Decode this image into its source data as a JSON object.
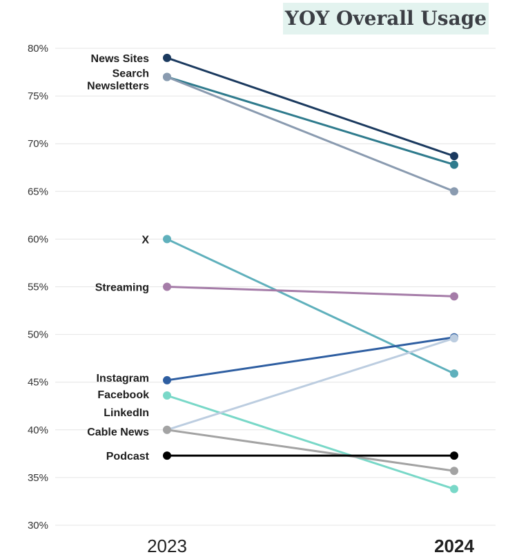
{
  "title": "YOY Overall Usage",
  "chart_data": {
    "type": "line",
    "title": "YOY Overall Usage",
    "x": [
      "2023",
      "2024"
    ],
    "x_emphasis": "2024",
    "ylim": [
      30,
      80
    ],
    "yticks": [
      "30%",
      "35%",
      "40%",
      "45%",
      "50%",
      "55%",
      "60%",
      "65%",
      "70%",
      "75%",
      "80%"
    ],
    "grid": true,
    "legend": "none (series labels at 2023 points)",
    "series": [
      {
        "name": "News Sites",
        "values": [
          79,
          68.7
        ],
        "color": "#1b3a5f"
      },
      {
        "name": "Search",
        "values": [
          77,
          67.8
        ],
        "color": "#2f7b8d"
      },
      {
        "name": "Newsletters",
        "values": [
          77,
          65
        ],
        "color": "#8a9bb0"
      },
      {
        "name": "X",
        "values": [
          60,
          45.9
        ],
        "color": "#5fb0bc"
      },
      {
        "name": "Streaming",
        "values": [
          55,
          54
        ],
        "color": "#a57ca8"
      },
      {
        "name": "Instagram",
        "values": [
          45.2,
          49.7
        ],
        "color": "#2e5ea1"
      },
      {
        "name": "Facebook",
        "values": [
          43.6,
          33.8
        ],
        "color": "#79d8c8"
      },
      {
        "name": "LinkedIn",
        "values": [
          40,
          49.6
        ],
        "color": "#bccde0"
      },
      {
        "name": "Cable News",
        "values": [
          40,
          35.7
        ],
        "color": "#a3a3a3"
      },
      {
        "name": "Podcast",
        "values": [
          37.3,
          37.3
        ],
        "color": "#000000"
      }
    ]
  }
}
